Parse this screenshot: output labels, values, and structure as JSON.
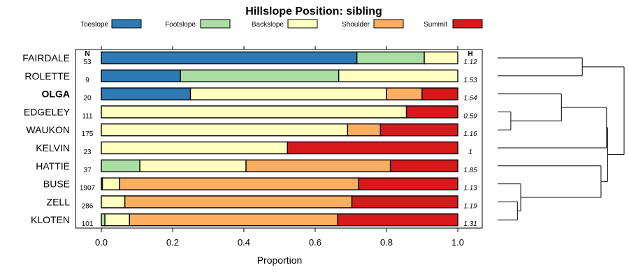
{
  "chart_data": {
    "type": "bar",
    "orientation": "horizontal",
    "stacked": true,
    "title": "Hillslope Position: sibling",
    "xlabel": "Proportion",
    "xlim": [
      0,
      1
    ],
    "xticks": [
      "0.0",
      "0.2",
      "0.4",
      "0.6",
      "0.8",
      "1.0"
    ],
    "legend_position": "top",
    "n_header": "N",
    "h_header": "H",
    "series": [
      {
        "name": "Toeslope",
        "color": "#2c7bb6"
      },
      {
        "name": "Footslope",
        "color": "#abdda4"
      },
      {
        "name": "Backslope",
        "color": "#ffffbf"
      },
      {
        "name": "Shoulder",
        "color": "#fdae61"
      },
      {
        "name": "Summit",
        "color": "#d7191c"
      }
    ],
    "rows": [
      {
        "label": "FAIRDALE",
        "bold": false,
        "n": "53",
        "h": "1.12",
        "values": [
          0.717,
          0.189,
          0.094,
          0,
          0
        ]
      },
      {
        "label": "ROLETTE",
        "bold": false,
        "n": "9",
        "h": "1.53",
        "values": [
          0.222,
          0.444,
          0.334,
          0,
          0
        ]
      },
      {
        "label": "OLGA",
        "bold": true,
        "n": "20",
        "h": "1.64",
        "values": [
          0.25,
          0,
          0.55,
          0.1,
          0.1
        ]
      },
      {
        "label": "EDGELEY",
        "bold": false,
        "n": "111",
        "h": "0.59",
        "values": [
          0,
          0,
          0.856,
          0,
          0.144
        ]
      },
      {
        "label": "WAUKON",
        "bold": false,
        "n": "175",
        "h": "1.16",
        "values": [
          0,
          0,
          0.691,
          0.092,
          0.217
        ]
      },
      {
        "label": "KELVIN",
        "bold": false,
        "n": "23",
        "h": "1",
        "values": [
          0,
          0,
          0.522,
          0,
          0.478
        ]
      },
      {
        "label": "HATTIE",
        "bold": false,
        "n": "37",
        "h": "1.85",
        "values": [
          0,
          0.108,
          0.298,
          0.405,
          0.189
        ]
      },
      {
        "label": "BUSE",
        "bold": false,
        "n": "1907",
        "h": "1.13",
        "values": [
          0,
          0.003,
          0.048,
          0.67,
          0.279
        ]
      },
      {
        "label": "ZELL",
        "bold": false,
        "n": "286",
        "h": "1.19",
        "values": [
          0,
          0,
          0.066,
          0.637,
          0.297
        ]
      },
      {
        "label": "KLOTEN",
        "bold": false,
        "n": "101",
        "h": "1.31",
        "values": [
          0,
          0.01,
          0.069,
          0.584,
          0.337
        ]
      }
    ],
    "dendrogram_merges": [
      [
        3,
        4,
        0.12
      ],
      [
        8,
        9,
        0.18
      ],
      [
        7,
        11,
        0.21
      ],
      [
        2,
        10,
        0.58
      ],
      [
        0,
        1,
        0.77
      ],
      [
        13,
        5,
        0.99
      ],
      [
        6,
        12,
        0.94
      ],
      [
        15,
        16,
        1.0
      ],
      [
        14,
        17,
        1.15
      ]
    ]
  }
}
